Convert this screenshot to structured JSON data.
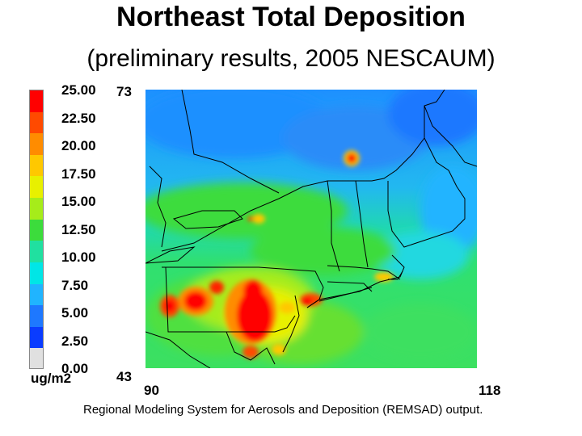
{
  "title": "Northeast Total Deposition",
  "subtitle": "(preliminary results, 2005 NESCAUM)",
  "legend": {
    "ticks": [
      "25.00",
      "22.50",
      "20.00",
      "17.50",
      "15.00",
      "12.50",
      "10.00",
      "7.50",
      "5.00",
      "2.50",
      "0.00"
    ],
    "unit": "ug/m2",
    "colors": [
      "#ff0000",
      "#ff4a00",
      "#ff8c00",
      "#ffc800",
      "#e8f000",
      "#a6ec1a",
      "#3cdc3c",
      "#20e0a0",
      "#00e6e6",
      "#20b4ff",
      "#1e78ff",
      "#0a3cff",
      "#e0e0e0"
    ]
  },
  "grid_labels": {
    "y_top": "73",
    "y_bottom": "43",
    "x_left": "90",
    "x_right": "118"
  },
  "caption": "Regional Modeling System for Aerosols and Deposition (REMSAD) output."
}
